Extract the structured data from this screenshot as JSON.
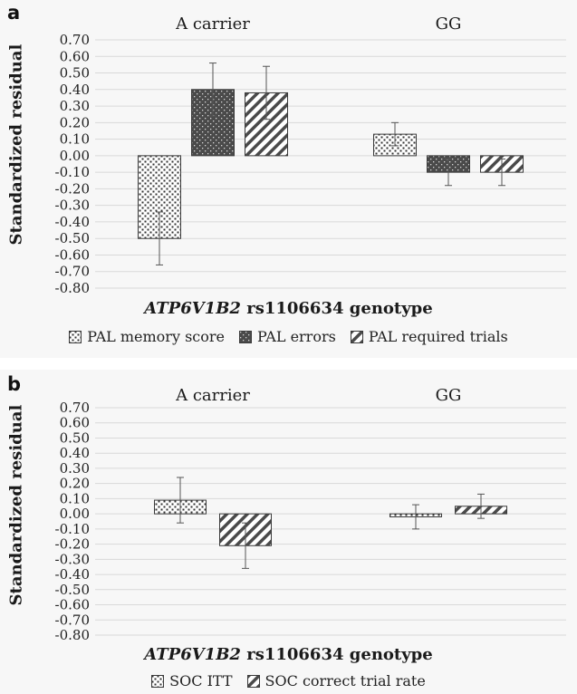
{
  "chart_data": [
    {
      "panel": "a",
      "type": "bar",
      "categories": [
        "A carrier",
        "GG"
      ],
      "series": [
        {
          "name": "PAL memory score",
          "values": [
            -0.5,
            0.13
          ],
          "error": [
            0.16,
            0.07
          ],
          "pattern": "dots"
        },
        {
          "name": "PAL errors",
          "values": [
            0.4,
            -0.1
          ],
          "error": [
            0.16,
            0.08
          ],
          "pattern": "dark"
        },
        {
          "name": "PAL required trials",
          "values": [
            0.38,
            -0.1
          ],
          "error": [
            0.16,
            0.08
          ],
          "pattern": "hatch"
        }
      ],
      "ylabel": "Standardized residual",
      "xlabel_italic": "ATP6V1B2",
      "xlabel_rest": " rs1106634 genotype",
      "ylim": [
        -0.8,
        0.7
      ],
      "ytick_step": 0.1,
      "grid": true,
      "legend_position": "bottom"
    },
    {
      "panel": "b",
      "type": "bar",
      "categories": [
        "A carrier",
        "GG"
      ],
      "series": [
        {
          "name": "SOC ITT",
          "values": [
            0.09,
            -0.02
          ],
          "error": [
            0.15,
            0.08
          ],
          "pattern": "dots"
        },
        {
          "name": "SOC correct trial rate",
          "values": [
            -0.21,
            0.05
          ],
          "error": [
            0.15,
            0.08
          ],
          "pattern": "hatch"
        }
      ],
      "ylabel": "Standardized residual",
      "xlabel_italic": "ATP6V1B2",
      "xlabel_rest": " rs1106634 genotype",
      "ylim": [
        -0.8,
        0.7
      ],
      "ytick_step": 0.1,
      "grid": true,
      "legend_position": "bottom"
    }
  ],
  "panel_a": {
    "letter": "a"
  },
  "panel_b": {
    "letter": "b"
  },
  "colors": {
    "grid": "#d9d9d9",
    "bar_edge": "#3a3a3a",
    "dark_fill": "#4a4a4a",
    "error_bar": "#555555"
  }
}
